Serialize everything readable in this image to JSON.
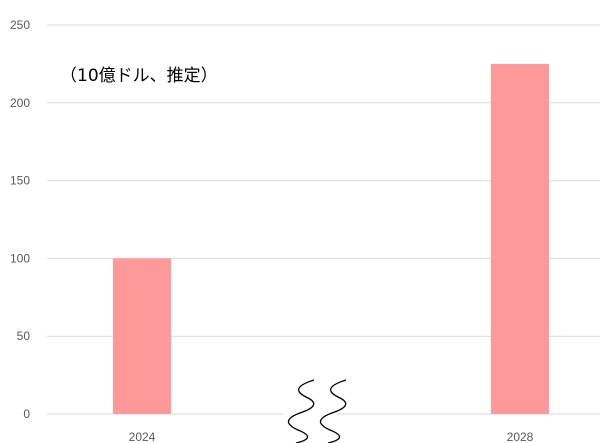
{
  "chart_data": {
    "type": "bar",
    "title": "",
    "subtitle": "",
    "unit_label": "（10億ドル、推定）",
    "xlabel": "",
    "ylabel": "",
    "categories": [
      "2024",
      "2028"
    ],
    "values": [
      100,
      225
    ],
    "ylim": [
      0,
      250
    ],
    "yticks": [
      0,
      50,
      100,
      150,
      200,
      250
    ],
    "grid": true,
    "legend": "none",
    "axis_break": "between categories",
    "bar_color": "#ff9999",
    "grid_color": "#d9d9d9"
  }
}
